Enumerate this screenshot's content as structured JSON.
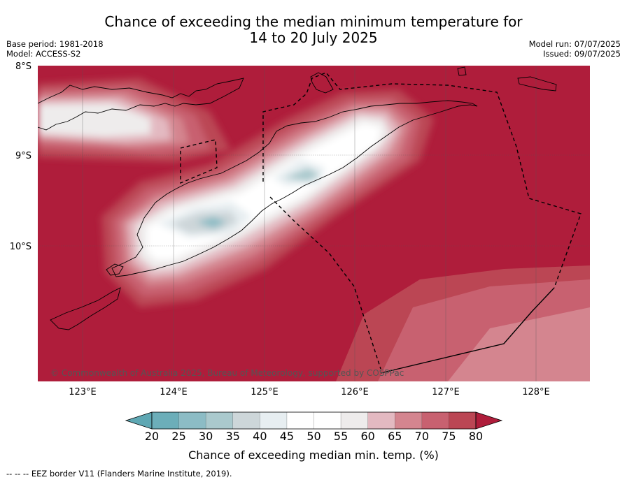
{
  "header": {
    "title_line1": "Chance of exceeding the median minimum temperature for",
    "title_line2": "14 to 20 July 2025",
    "base_period": "Base period: 1981-2018",
    "model": "Model: ACCESS-S2",
    "model_run": "Model run: 07/07/2025",
    "issued": "Issued: 09/07/2025"
  },
  "map": {
    "lat_labels": [
      "8°S",
      "9°S",
      "10°S"
    ],
    "lon_labels": [
      "123°E",
      "124°E",
      "125°E",
      "126°E",
      "127°E",
      "128°E"
    ],
    "copyright": "© Commonwealth of Australia 2025, Bureau of Meteorology, supported by COSPPac"
  },
  "colorbar": {
    "ticks": [
      "20",
      "25",
      "30",
      "35",
      "40",
      "45",
      "50",
      "55",
      "60",
      "65",
      "70",
      "75",
      "80"
    ],
    "label": "Chance of exceeding median min. temp. (%)",
    "colors": [
      "#5ea7b3",
      "#6caeb9",
      "#8cbcc5",
      "#aac9cd",
      "#cdd6d9",
      "#e7eef1",
      "#ffffff",
      "#ffffff",
      "#eeecec",
      "#e3b9c1",
      "#d4858f",
      "#c86170",
      "#bb4654",
      "#af1d3b"
    ]
  },
  "footnote": "-- -- -- EEZ border V11 (Flanders Marine Institute, 2019)."
}
